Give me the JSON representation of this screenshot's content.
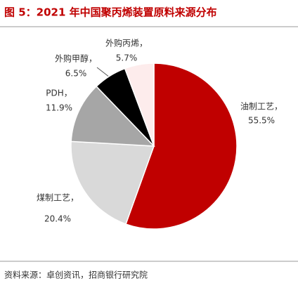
{
  "chart_data": {
    "type": "pie",
    "title": "图 5：2021 年中国聚丙烯装置原料来源分布",
    "categories": [
      "油制工艺，",
      "煤制工艺，",
      "PDH，",
      "外购甲醇，",
      "外购丙烯，"
    ],
    "values": [
      55.5,
      20.4,
      11.9,
      6.5,
      5.7
    ],
    "value_labels": [
      "55.5%",
      "20.4%",
      "11.9%",
      "6.5%",
      "5.7%"
    ],
    "colors": [
      "#C00000",
      "#D9D9D9",
      "#A6A6A6",
      "#000000",
      "#FDECEC"
    ],
    "source": "资料来源：卓创资讯，招商银行研究院"
  }
}
